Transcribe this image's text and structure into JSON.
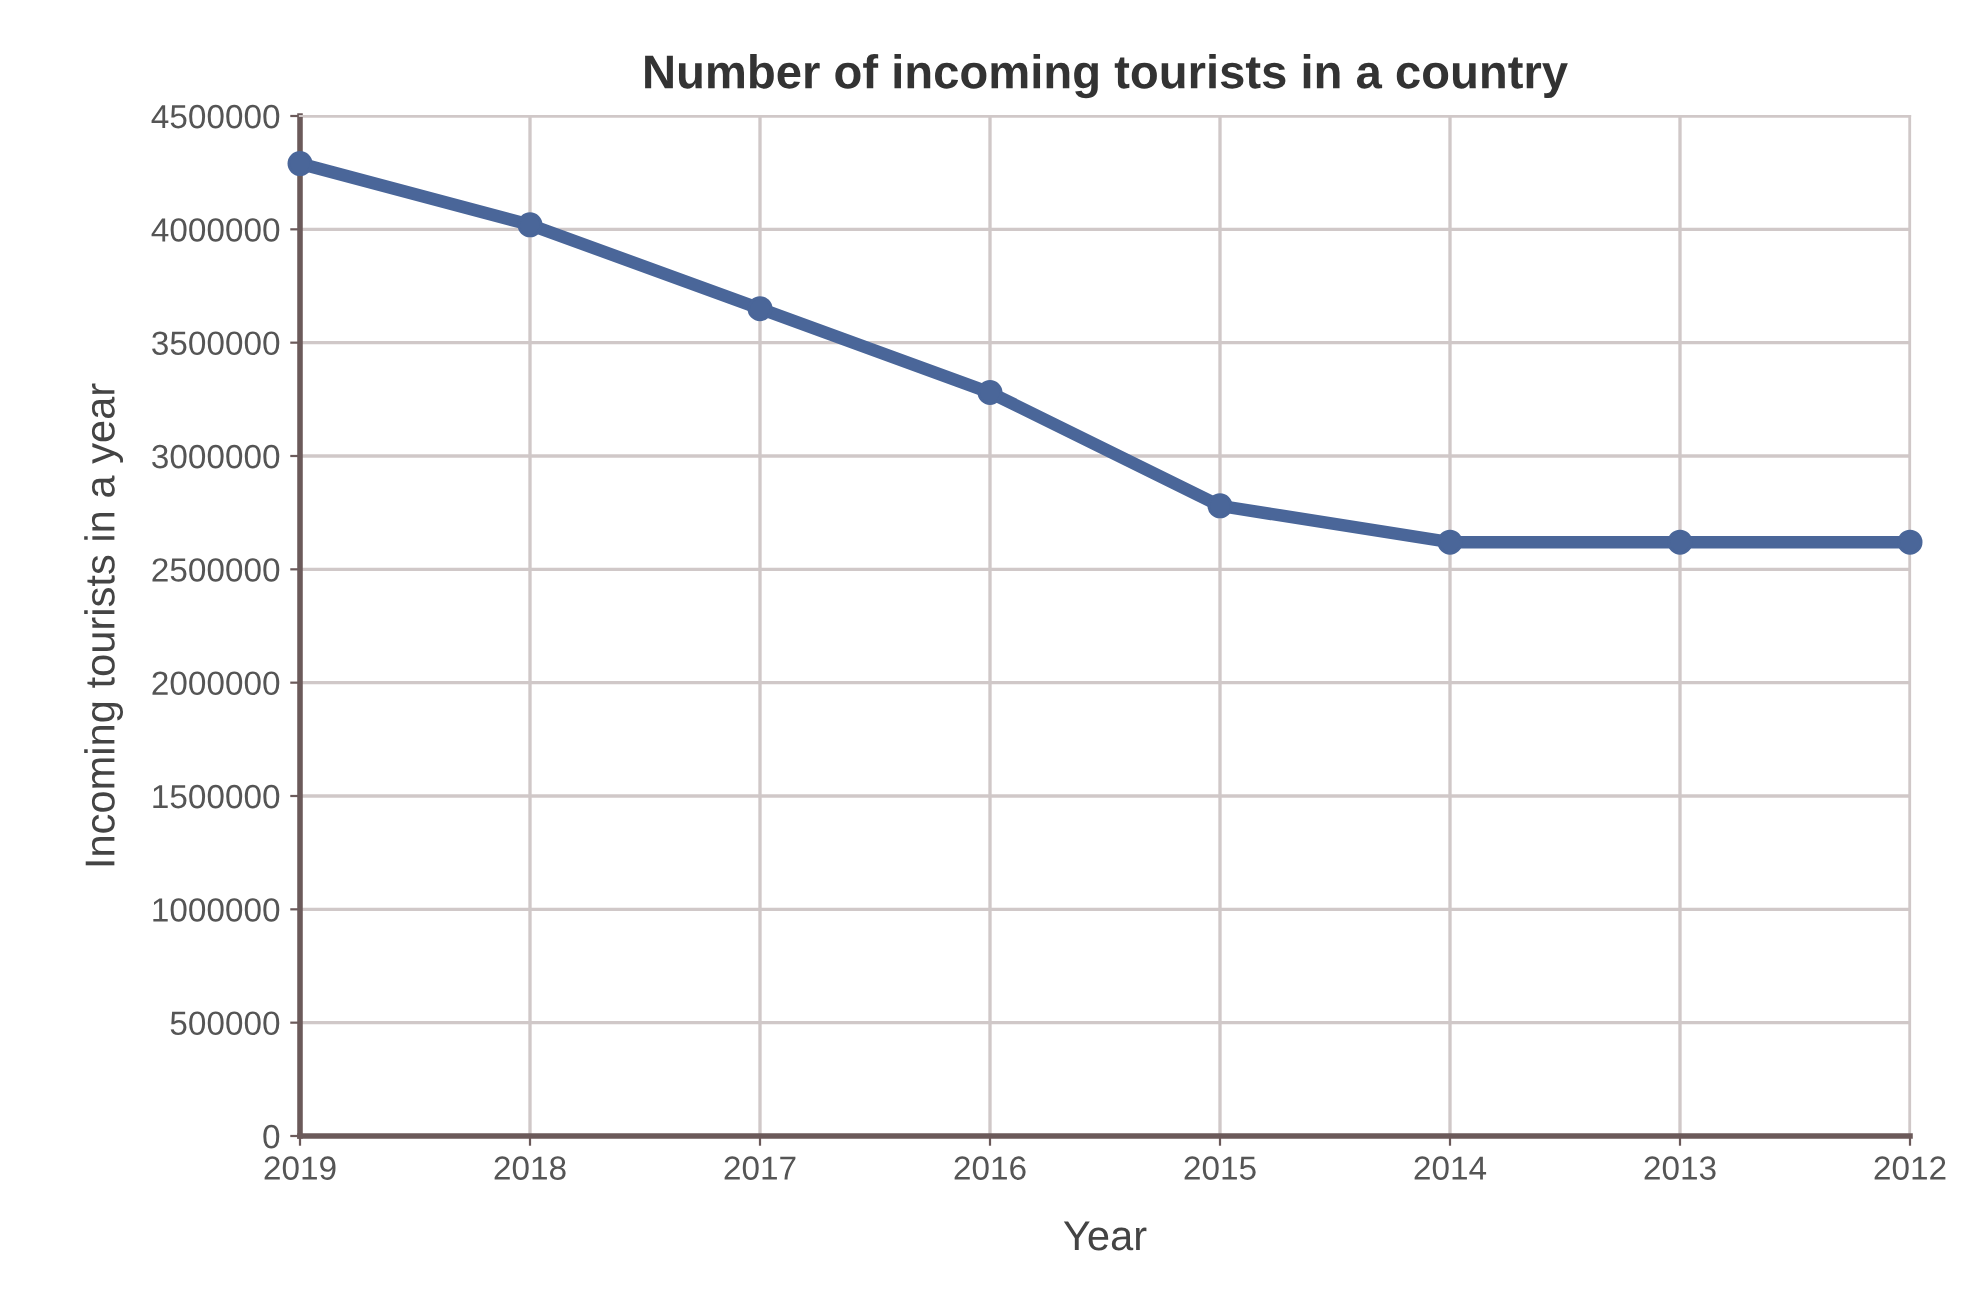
{
  "chart_data": {
    "type": "line",
    "title": "Number of incoming tourists in a country",
    "xlabel": "Year",
    "ylabel": "Incoming tourists in a year",
    "categories": [
      "2019",
      "2018",
      "2017",
      "2016",
      "2015",
      "2014",
      "2013",
      "2012"
    ],
    "series": [
      {
        "color": "#4a6699",
        "values": [
          4290000,
          4020000,
          3650000,
          3280000,
          2780000,
          2620000,
          2620000,
          2620000
        ]
      }
    ],
    "ylim": [
      0,
      4500000
    ],
    "yticks": [
      0,
      500000,
      1000000,
      1500000,
      2000000,
      2500000,
      3000000,
      3500000,
      4000000,
      4500000
    ],
    "grid": true,
    "marker": "circle",
    "line_style": "solid"
  }
}
